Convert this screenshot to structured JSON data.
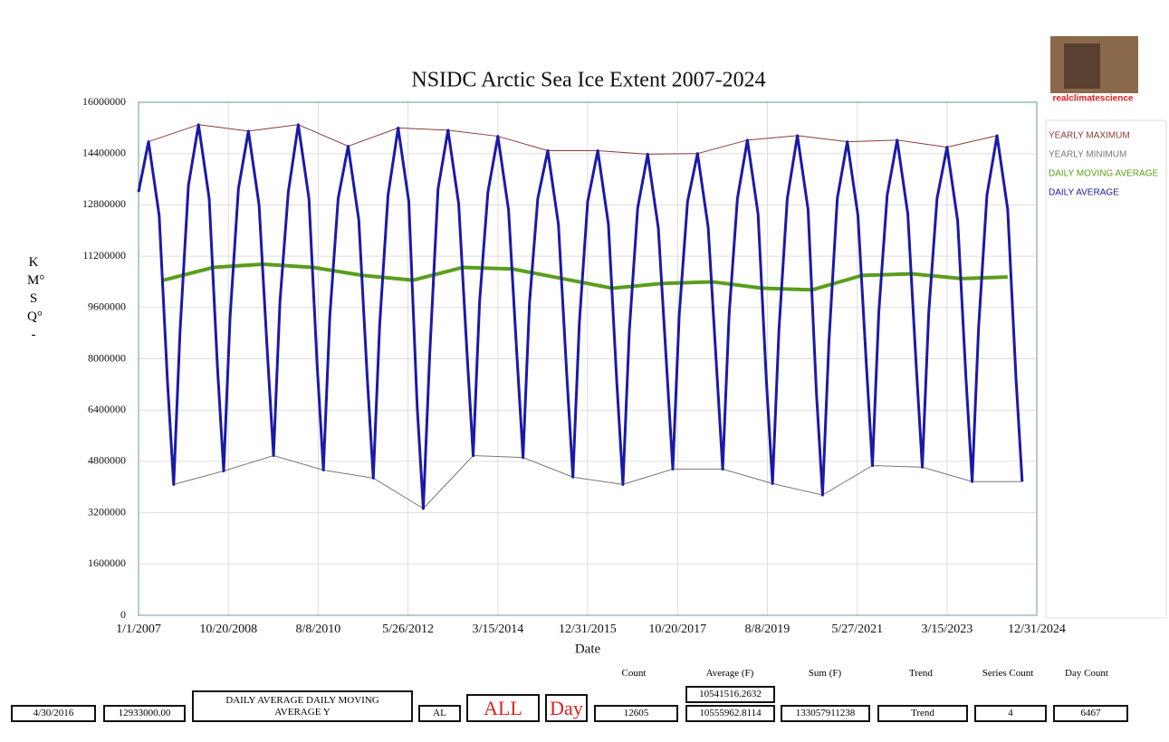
{
  "chart_data": {
    "type": "line",
    "title": "NSIDC Arctic Sea Ice Extent 2007-2024",
    "x_label": "Date",
    "y_label": "KM°SQ°-",
    "xlim": [
      "1/1/2007",
      "12/31/2024"
    ],
    "xticks": [
      "1/1/2007",
      "10/20/2008",
      "8/8/2010",
      "5/26/2012",
      "3/15/2014",
      "12/31/2015",
      "10/20/2017",
      "8/8/2019",
      "5/27/2021",
      "3/15/2023",
      "12/31/2024"
    ],
    "ylim": [
      0,
      16000000
    ],
    "yticks": [
      0,
      1600000,
      3200000,
      4800000,
      6400000,
      8000000,
      9600000,
      11200000,
      12800000,
      14400000,
      16000000
    ],
    "grid": true,
    "legend": "right",
    "series": [
      {
        "name": "YEARLY MAXIMUM",
        "color": "#8b3a3a",
        "width": 1,
        "x": [
          "3/15/2007",
          "3/15/2008",
          "3/15/2009",
          "3/15/2010",
          "3/15/2011",
          "3/15/2012",
          "3/15/2013",
          "3/15/2014",
          "3/15/2015",
          "3/15/2016",
          "3/15/2017",
          "3/15/2018",
          "3/15/2019",
          "3/15/2020",
          "3/15/2021",
          "3/15/2022",
          "3/15/2023",
          "3/15/2024"
        ],
        "values": [
          14770000,
          15300000,
          15100000,
          15300000,
          14630000,
          15200000,
          15130000,
          14940000,
          14490000,
          14490000,
          14380000,
          14400000,
          14820000,
          14960000,
          14770000,
          14820000,
          14600000,
          14960000
        ]
      },
      {
        "name": "YEARLY MINIMUM",
        "color": "#777777",
        "width": 1,
        "x": [
          "9/15/2007",
          "9/15/2008",
          "9/15/2009",
          "9/15/2010",
          "9/15/2011",
          "9/15/2012",
          "9/15/2013",
          "9/15/2014",
          "9/15/2015",
          "9/15/2016",
          "9/15/2017",
          "9/15/2018",
          "9/15/2019",
          "9/15/2020",
          "9/15/2021",
          "9/15/2022",
          "9/15/2023",
          "9/15/2024"
        ],
        "values": [
          4080000,
          4500000,
          4980000,
          4530000,
          4280000,
          3330000,
          4980000,
          4920000,
          4310000,
          4080000,
          4560000,
          4560000,
          4110000,
          3750000,
          4670000,
          4620000,
          4170000,
          4170000
        ]
      },
      {
        "name": "DAILY MOVING AVERAGE",
        "color": "#5a9e1a",
        "width": 4,
        "x": [
          "7/1/2007",
          "7/1/2008",
          "7/1/2009",
          "7/1/2010",
          "7/1/2011",
          "7/1/2012",
          "7/1/2013",
          "7/1/2014",
          "7/1/2015",
          "7/1/2016",
          "7/1/2017",
          "7/1/2018",
          "7/1/2019",
          "7/1/2020",
          "7/1/2021",
          "7/1/2022",
          "7/1/2023",
          "6/1/2024"
        ],
        "values": [
          10450000,
          10850000,
          10950000,
          10850000,
          10600000,
          10450000,
          10850000,
          10800000,
          10500000,
          10200000,
          10350000,
          10400000,
          10200000,
          10150000,
          10600000,
          10650000,
          10500000,
          10550000
        ]
      },
      {
        "name": "DAILY AVERAGE",
        "color": "#1a1aa8",
        "width": 3,
        "x": [
          "1/1/2007",
          "3/15/2007",
          "6/1/2007",
          "8/1/2007",
          "9/15/2007",
          "11/1/2007",
          "1/1/2008",
          "3/15/2008",
          "6/1/2008",
          "8/1/2008",
          "9/15/2008",
          "11/1/2008",
          "1/1/2009",
          "3/15/2009",
          "6/1/2009",
          "8/1/2009",
          "9/15/2009",
          "11/1/2009",
          "1/1/2010",
          "3/15/2010",
          "6/1/2010",
          "8/1/2010",
          "9/15/2010",
          "11/1/2010",
          "1/1/2011",
          "3/15/2011",
          "6/1/2011",
          "8/1/2011",
          "9/15/2011",
          "11/1/2011",
          "1/1/2012",
          "3/15/2012",
          "6/1/2012",
          "8/1/2012",
          "9/15/2012",
          "11/1/2012",
          "1/1/2013",
          "3/15/2013",
          "6/1/2013",
          "8/1/2013",
          "9/15/2013",
          "11/1/2013",
          "1/1/2014",
          "3/15/2014",
          "6/1/2014",
          "8/1/2014",
          "9/15/2014",
          "11/1/2014",
          "1/1/2015",
          "3/15/2015",
          "6/1/2015",
          "8/1/2015",
          "9/15/2015",
          "11/1/2015",
          "1/1/2016",
          "3/15/2016",
          "6/1/2016",
          "8/1/2016",
          "9/15/2016",
          "11/1/2016",
          "1/1/2017",
          "3/15/2017",
          "6/1/2017",
          "8/1/2017",
          "9/15/2017",
          "11/1/2017",
          "1/1/2018",
          "3/15/2018",
          "6/1/2018",
          "8/1/2018",
          "9/15/2018",
          "11/1/2018",
          "1/1/2019",
          "3/15/2019",
          "6/1/2019",
          "8/1/2019",
          "9/15/2019",
          "11/1/2019",
          "1/1/2020",
          "3/15/2020",
          "6/1/2020",
          "8/1/2020",
          "9/15/2020",
          "11/1/2020",
          "1/1/2021",
          "3/15/2021",
          "6/1/2021",
          "8/1/2021",
          "9/15/2021",
          "11/1/2021",
          "1/1/2022",
          "3/15/2022",
          "6/1/2022",
          "8/1/2022",
          "9/15/2022",
          "11/1/2022",
          "1/1/2023",
          "3/15/2023",
          "6/1/2023",
          "8/1/2023",
          "9/15/2023",
          "11/1/2023",
          "1/1/2024",
          "3/15/2024",
          "6/1/2024",
          "8/1/2024",
          "9/15/2024"
        ],
        "values": [
          13200000,
          14770000,
          12470000,
          7280000,
          4080000,
          8880000,
          13400000,
          15300000,
          13000000,
          7700000,
          4500000,
          9300000,
          13300000,
          15100000,
          12800000,
          8180000,
          4980000,
          9780000,
          13200000,
          15300000,
          13000000,
          7730000,
          4530000,
          9330000,
          13000000,
          14630000,
          12330000,
          7480000,
          4280000,
          9080000,
          13100000,
          15200000,
          12900000,
          6530000,
          3330000,
          8130000,
          13300000,
          15130000,
          12830000,
          8180000,
          4980000,
          9780000,
          13200000,
          14940000,
          12640000,
          8120000,
          4920000,
          9720000,
          13000000,
          14490000,
          12190000,
          7510000,
          4310000,
          9110000,
          12900000,
          14490000,
          12190000,
          7280000,
          4080000,
          8880000,
          12700000,
          14380000,
          12080000,
          7760000,
          4560000,
          9360000,
          12900000,
          14400000,
          12100000,
          7760000,
          4560000,
          9360000,
          13000000,
          14820000,
          12520000,
          7310000,
          4110000,
          8910000,
          13000000,
          14960000,
          12660000,
          6950000,
          3750000,
          8550000,
          13000000,
          14770000,
          12470000,
          7870000,
          4670000,
          9470000,
          13100000,
          14820000,
          12520000,
          7820000,
          4620000,
          9420000,
          13000000,
          14600000,
          12300000,
          7370000,
          4170000,
          8970000,
          13100000,
          14960000,
          12660000,
          7370000,
          4170000
        ]
      }
    ]
  },
  "logo_text": "realclimatescience",
  "form": {
    "date": "4/30/2016",
    "value": "12933000.00",
    "series_select": "DAILY AVERAGE DAILY MOVING AVERAGE Y",
    "code": "AL",
    "range": "ALL",
    "unit": "Day",
    "count": "12605",
    "averages": [
      "10541516.2632",
      "10555962.8114"
    ],
    "sum": "133057911238",
    "trend": "Trend",
    "series_count": "4",
    "day_count": "6467",
    "headers": [
      "Count",
      "Average (F)",
      "Sum (F)",
      "Trend",
      "Series Count",
      "Day Count"
    ]
  }
}
